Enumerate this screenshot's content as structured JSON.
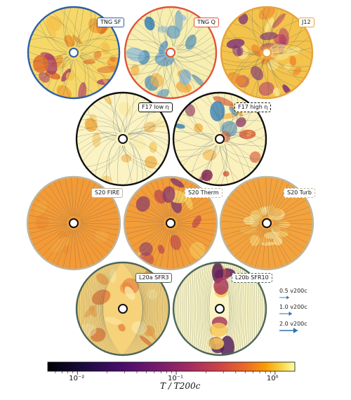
{
  "panels": [
    {
      "label": "TNG SF",
      "variant": "hot",
      "border": "#2c5fa8",
      "dashed": false
    },
    {
      "label": "TNG Q",
      "variant": "cool",
      "border": "#e0533b",
      "dashed": false
    },
    {
      "label": "J12",
      "variant": "warm",
      "border": "#e8a13a",
      "dashed": false
    },
    {
      "label": "F17 low η",
      "variant": "pale",
      "border": "#111111",
      "dashed": false
    },
    {
      "label": "F17 high η",
      "variant": "paleflow",
      "border": "#111111",
      "dashed": true
    },
    {
      "label": "S20 FIRE",
      "variant": "orange",
      "border": "#bdb6a0",
      "dashed": false
    },
    {
      "label": "S20 Therm",
      "variant": "orangepatch",
      "border": "#bdb6a0",
      "dashed": true
    },
    {
      "label": "S20 Turb",
      "variant": "orangering",
      "border": "#bdb6a0",
      "dashed": true
    },
    {
      "label": "L20a SFR3",
      "variant": "loops",
      "border": "#4d6659",
      "dashed": false
    },
    {
      "label": "L20b SFR10",
      "variant": "outflow",
      "border": "#4d6659",
      "dashed": true
    }
  ],
  "legend": [
    {
      "label": "0.5 v200c",
      "scale": 0.5
    },
    {
      "label": "1.0 v200c",
      "scale": 1.0
    },
    {
      "label": "2.0 v200c",
      "scale": 2.0
    }
  ],
  "colorbar": {
    "label": "T / T200c",
    "ticks": [
      {
        "text": "10⁻²",
        "value": -2
      },
      {
        "text": "10⁻¹",
        "value": -1
      },
      {
        "text": "10⁰",
        "value": 0
      }
    ],
    "log_min": -2.3,
    "log_max": 0.2
  },
  "colors": {
    "arrow": "#2e6fa8",
    "ink": "#222222"
  }
}
